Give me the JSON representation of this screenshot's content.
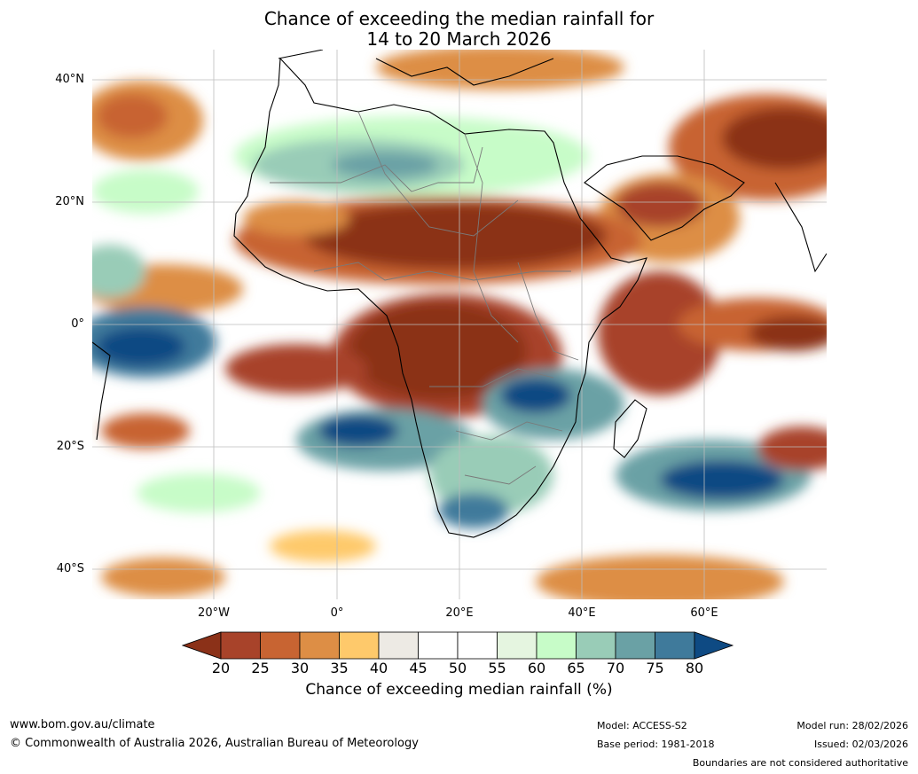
{
  "title_line1": "Chance of exceeding the median rainfall for",
  "title_line2": "14 to 20 March 2026",
  "lat_labels": [
    "40°N",
    "20°N",
    "0°",
    "20°S",
    "40°S"
  ],
  "lon_labels": [
    "20°W",
    "0°",
    "20°E",
    "40°E",
    "60°E"
  ],
  "colorbar": {
    "label": "Chance of exceeding median rainfall (%)",
    "ticks": [
      "20",
      "25",
      "30",
      "35",
      "40",
      "45",
      "50",
      "55",
      "60",
      "65",
      "70",
      "75",
      "80"
    ],
    "colors": [
      "#8b3118",
      "#a8432a",
      "#c86432",
      "#dd8e45",
      "#fec96b",
      "#edeae4",
      "#ffffff",
      "#ffffff",
      "#e5f5e0",
      "#c7fcc8",
      "#99ccb7",
      "#6aa1a5",
      "#3f7a9b",
      "#0e4a83"
    ]
  },
  "footer": {
    "site": "www.bom.gov.au/climate",
    "copyright": "© Commonwealth of Australia 2026, Australian Bureau of Meteorology",
    "model": "Model: ACCESS-S2",
    "base_period": "Base period: 1981-2018",
    "model_run": "Model run: 28/02/2026",
    "issued": "Issued: 02/03/2026",
    "disclaimer": "Boundaries are not considered authoritative"
  }
}
